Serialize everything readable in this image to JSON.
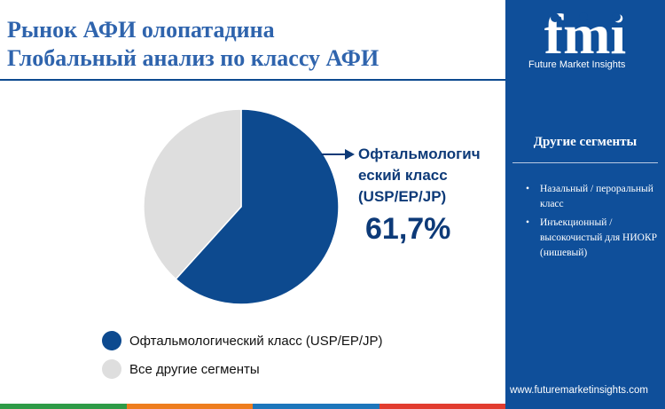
{
  "title": {
    "line1": "Рынок АФИ олопатадина",
    "line2": "Глобальный анализ по классу АФИ"
  },
  "chart_data": {
    "type": "pie",
    "slices": [
      {
        "label": "Офтальмологический класс (USP/EP/JP)",
        "value": 61.7,
        "color": "#0d4a8f"
      },
      {
        "label": "Все другие сегменты",
        "value": 38.3,
        "color": "#dedede"
      }
    ],
    "callout": {
      "label_lines": [
        "Офтальмологич",
        "еский класс",
        "(USP/EP/JP)"
      ],
      "value_text": "61,7%"
    },
    "legend": [
      {
        "label": "Офтальмологический класс (USP/EP/JP)",
        "color": "#0d4a8f"
      },
      {
        "label": "Все другие сегменты",
        "color": "#dedede"
      }
    ],
    "legend_position": "bottom-left"
  },
  "sidebar": {
    "brand_logo_text": "fmi",
    "brand_name": "Future Market Insights",
    "heading": "Другие сегменты",
    "items": [
      "Назальный / пероральный класс",
      "Инъекционный / высокочистый для НИОКР (нишевый)"
    ],
    "url": "www.futuremarketinsights.com"
  },
  "colors": {
    "title": "#2f64ad",
    "sidebar_bg": "#0f4f9a",
    "primary": "#0d4a8f",
    "secondary": "#dedede",
    "bottom_bar": [
      "#2e9b47",
      "#ee7d1e",
      "#1d76bb",
      "#e23c2f"
    ]
  }
}
